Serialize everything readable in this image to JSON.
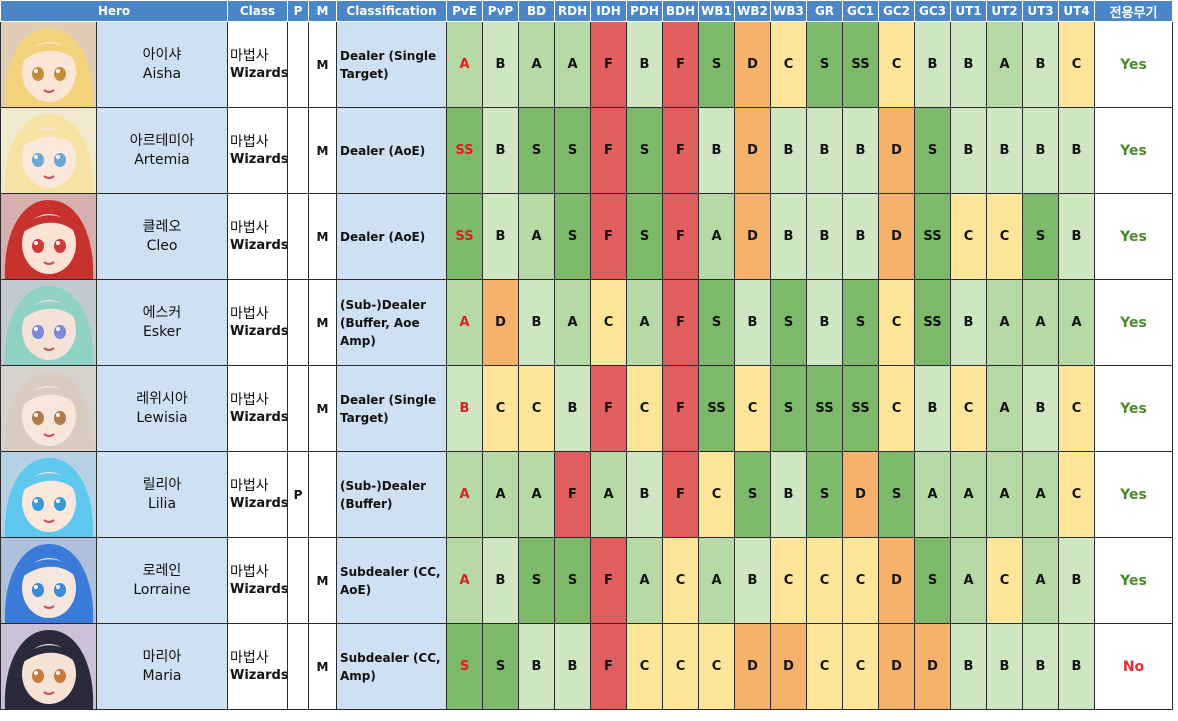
{
  "headers": [
    "Hero",
    "Class",
    "P",
    "M",
    "Classification",
    "PvE",
    "PvP",
    "BD",
    "RDH",
    "IDH",
    "PDH",
    "BDH",
    "WB1",
    "WB2",
    "WB3",
    "GR",
    "GC1",
    "GC2",
    "GC3",
    "UT1",
    "UT2",
    "UT3",
    "UT4",
    "전용무기"
  ],
  "grade_colors": {
    "SS": "#7db96a",
    "S": "#7db96a",
    "A": "#b6d9a6",
    "B": "#cfe6c2",
    "C": "#fde69a",
    "D": "#f6b16a",
    "F": "#e05e5e"
  },
  "heroes": [
    {
      "name_ko": "아이샤",
      "name_en": "Aisha",
      "class_ko": "마법사",
      "class_en": "Wizards",
      "p": "",
      "m": "M",
      "classification": "Dealer (Single Target)",
      "weapon": "Yes",
      "portrait": {
        "hair": "#f2d27a",
        "skin": "#fbe6d6",
        "eye": "#c98a3a",
        "accent": "#a56a2a"
      },
      "grades": [
        "A",
        "B",
        "A",
        "A",
        "F",
        "B",
        "F",
        "S",
        "D",
        "C",
        "S",
        "SS",
        "C",
        "B",
        "B",
        "A",
        "B",
        "C"
      ]
    },
    {
      "name_ko": "아르테미아",
      "name_en": "Artemia",
      "class_ko": "마법사",
      "class_en": "Wizards",
      "p": "",
      "m": "M",
      "classification": "Dealer (AoE)",
      "weapon": "Yes",
      "portrait": {
        "hair": "#f6e3a4",
        "skin": "#fbe8da",
        "eye": "#6aa8d8",
        "accent": "#d8c070"
      },
      "grades": [
        "SS",
        "B",
        "S",
        "S",
        "F",
        "S",
        "F",
        "B",
        "D",
        "B",
        "B",
        "B",
        "D",
        "S",
        "B",
        "B",
        "B",
        "B"
      ]
    },
    {
      "name_ko": "클레오",
      "name_en": "Cleo",
      "class_ko": "마법사",
      "class_en": "Wizards",
      "p": "",
      "m": "M",
      "classification": "Dealer (AoE)",
      "weapon": "Yes",
      "portrait": {
        "hair": "#c8322e",
        "skin": "#fbe2d4",
        "eye": "#d03a3a",
        "accent": "#8a1a1a"
      },
      "grades": [
        "SS",
        "B",
        "A",
        "S",
        "F",
        "S",
        "F",
        "A",
        "D",
        "B",
        "B",
        "B",
        "D",
        "SS",
        "C",
        "C",
        "S",
        "B"
      ]
    },
    {
      "name_ko": "에스커",
      "name_en": "Esker",
      "class_ko": "마법사",
      "class_en": "Wizards",
      "p": "",
      "m": "M",
      "classification": "(Sub-)Dealer (Buffer, Aoe Amp)",
      "weapon": "Yes",
      "portrait": {
        "hair": "#8fd2c4",
        "skin": "#f4e2d8",
        "eye": "#7a8ad8",
        "accent": "#4a6a7a"
      },
      "grades": [
        "A",
        "D",
        "B",
        "A",
        "C",
        "A",
        "F",
        "S",
        "B",
        "S",
        "B",
        "S",
        "C",
        "SS",
        "B",
        "A",
        "A",
        "A"
      ]
    },
    {
      "name_ko": "레위시아",
      "name_en": "Lewisia",
      "class_ko": "마법사",
      "class_en": "Wizards",
      "p": "",
      "m": "M",
      "classification": "Dealer (Single Target)",
      "weapon": "Yes",
      "portrait": {
        "hair": "#d8ccc0",
        "skin": "#f8e6dc",
        "eye": "#b07a4a",
        "accent": "#8a7a6a"
      },
      "grades": [
        "B",
        "C",
        "C",
        "B",
        "F",
        "C",
        "F",
        "SS",
        "C",
        "S",
        "SS",
        "SS",
        "C",
        "B",
        "C",
        "A",
        "B",
        "C"
      ]
    },
    {
      "name_ko": "릴리아",
      "name_en": "Lilia",
      "class_ko": "마법사",
      "class_en": "Wizards",
      "p": "P",
      "m": "",
      "classification": "(Sub-)Dealer (Buffer)",
      "weapon": "Yes",
      "portrait": {
        "hair": "#5ec8ee",
        "skin": "#fbe8dc",
        "eye": "#3a9ad8",
        "accent": "#2a7ab8"
      },
      "grades": [
        "A",
        "A",
        "A",
        "F",
        "A",
        "B",
        "F",
        "C",
        "S",
        "B",
        "S",
        "D",
        "S",
        "A",
        "A",
        "A",
        "A",
        "C"
      ]
    },
    {
      "name_ko": "로레인",
      "name_en": "Lorraine",
      "class_ko": "마법사",
      "class_en": "Wizards",
      "p": "",
      "m": "M",
      "classification": "Subdealer (CC, AoE)",
      "weapon": "Yes",
      "portrait": {
        "hair": "#3a7ad8",
        "skin": "#f6e6e0",
        "eye": "#3a8ad8",
        "accent": "#1a4a9a"
      },
      "grades": [
        "A",
        "B",
        "S",
        "S",
        "F",
        "A",
        "C",
        "A",
        "B",
        "C",
        "C",
        "C",
        "D",
        "S",
        "A",
        "C",
        "A",
        "B"
      ]
    },
    {
      "name_ko": "마리아",
      "name_en": "Maria",
      "class_ko": "마법사",
      "class_en": "Wizards",
      "p": "",
      "m": "M",
      "classification": "Subdealer (CC, Amp)",
      "weapon": "No",
      "portrait": {
        "hair": "#2a2a3a",
        "skin": "#f6e2d6",
        "eye": "#c87a3a",
        "accent": "#6a4a8a"
      },
      "grades": [
        "S",
        "S",
        "B",
        "B",
        "F",
        "C",
        "C",
        "C",
        "D",
        "D",
        "C",
        "C",
        "D",
        "D",
        "B",
        "B",
        "B",
        "B"
      ]
    }
  ]
}
